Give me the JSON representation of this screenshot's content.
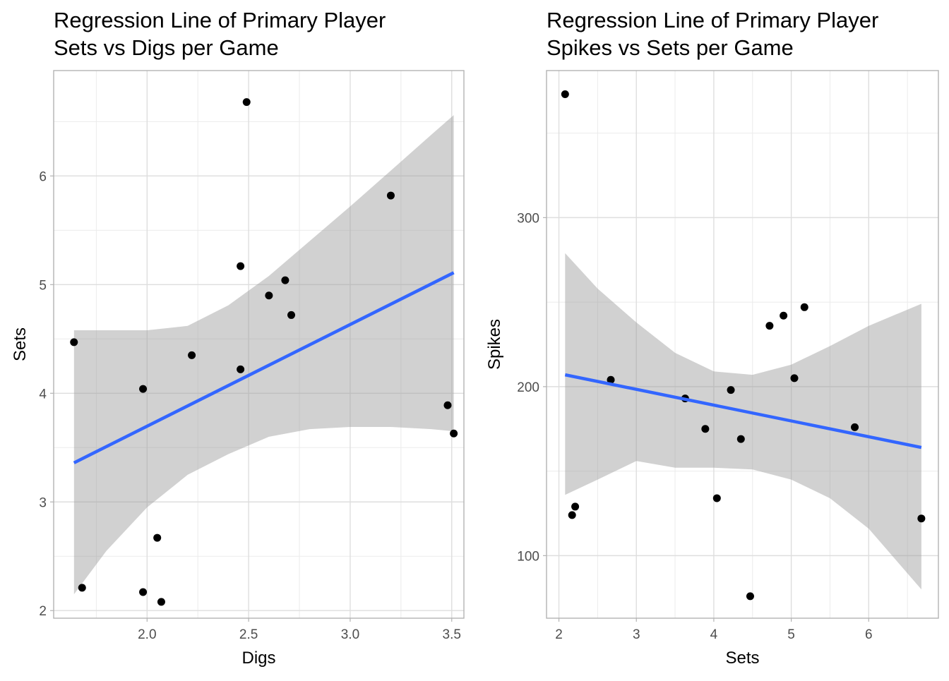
{
  "chart_data": [
    {
      "type": "scatter",
      "title": "Regression Line of Primary Player",
      "subtitle": "Sets vs Digs per Game",
      "xlabel": "Digs",
      "ylabel": "Sets",
      "xlim": [
        1.54,
        3.56
      ],
      "ylim": [
        1.93,
        6.97
      ],
      "x_ticks": [
        2.0,
        2.5,
        3.0,
        3.5
      ],
      "x_tick_labels": [
        "2.0",
        "2.5",
        "3.0",
        "3.5"
      ],
      "y_ticks": [
        2,
        3,
        4,
        5,
        6
      ],
      "y_tick_labels": [
        "2",
        "3",
        "4",
        "5",
        "6"
      ],
      "grid": true,
      "points": [
        {
          "x": 1.64,
          "y": 4.47
        },
        {
          "x": 1.68,
          "y": 2.21
        },
        {
          "x": 1.98,
          "y": 4.04
        },
        {
          "x": 1.98,
          "y": 2.17
        },
        {
          "x": 2.05,
          "y": 2.67
        },
        {
          "x": 2.07,
          "y": 2.08
        },
        {
          "x": 2.22,
          "y": 4.35
        },
        {
          "x": 2.46,
          "y": 5.17
        },
        {
          "x": 2.46,
          "y": 4.22
        },
        {
          "x": 2.49,
          "y": 6.68
        },
        {
          "x": 2.6,
          "y": 4.9
        },
        {
          "x": 2.68,
          "y": 5.04
        },
        {
          "x": 2.71,
          "y": 4.72
        },
        {
          "x": 3.2,
          "y": 5.82
        },
        {
          "x": 3.48,
          "y": 3.89
        },
        {
          "x": 3.51,
          "y": 3.63
        }
      ],
      "regression": {
        "x": [
          1.64,
          3.51
        ],
        "y": [
          3.36,
          5.11
        ]
      },
      "confidence_band": {
        "x": [
          1.64,
          1.8,
          2.0,
          2.2,
          2.4,
          2.6,
          2.8,
          3.0,
          3.2,
          3.4,
          3.51
        ],
        "upper": [
          4.58,
          4.58,
          4.58,
          4.62,
          4.81,
          5.08,
          5.4,
          5.72,
          6.05,
          6.38,
          6.56
        ],
        "lower": [
          2.15,
          2.55,
          2.95,
          3.25,
          3.44,
          3.6,
          3.67,
          3.69,
          3.69,
          3.67,
          3.65
        ]
      },
      "colors": {
        "points": "#000000",
        "line": "#3366ff",
        "band": "#999999"
      }
    },
    {
      "type": "scatter",
      "title": "Regression Line of Primary Player",
      "subtitle": "Spikes vs Sets per Game",
      "xlabel": "Sets",
      "ylabel": "Spikes",
      "xlim": [
        1.84,
        6.9
      ],
      "ylim": [
        63,
        387
      ],
      "x_ticks": [
        2,
        3,
        4,
        5,
        6
      ],
      "x_tick_labels": [
        "2",
        "3",
        "4",
        "5",
        "6"
      ],
      "y_ticks": [
        100,
        200,
        300
      ],
      "y_tick_labels": [
        "100",
        "200",
        "300"
      ],
      "grid": true,
      "points": [
        {
          "x": 2.08,
          "y": 373
        },
        {
          "x": 2.17,
          "y": 124
        },
        {
          "x": 2.21,
          "y": 129
        },
        {
          "x": 2.67,
          "y": 204
        },
        {
          "x": 3.63,
          "y": 193
        },
        {
          "x": 3.89,
          "y": 175
        },
        {
          "x": 4.04,
          "y": 134
        },
        {
          "x": 4.22,
          "y": 198
        },
        {
          "x": 4.35,
          "y": 169
        },
        {
          "x": 4.47,
          "y": 76
        },
        {
          "x": 4.72,
          "y": 236
        },
        {
          "x": 4.9,
          "y": 242
        },
        {
          "x": 5.04,
          "y": 205
        },
        {
          "x": 5.17,
          "y": 247
        },
        {
          "x": 5.82,
          "y": 176
        },
        {
          "x": 6.68,
          "y": 122
        }
      ],
      "regression": {
        "x": [
          2.08,
          6.68
        ],
        "y": [
          207,
          164
        ]
      },
      "confidence_band": {
        "x": [
          2.08,
          2.5,
          3.0,
          3.5,
          4.0,
          4.5,
          5.0,
          5.5,
          6.0,
          6.68
        ],
        "upper": [
          279,
          258,
          238,
          220,
          209,
          207,
          213,
          224,
          236,
          249
        ],
        "lower": [
          136,
          145,
          156,
          152,
          152,
          151,
          145,
          134,
          116,
          80
        ]
      },
      "colors": {
        "points": "#000000",
        "line": "#3366ff",
        "band": "#999999"
      }
    }
  ]
}
